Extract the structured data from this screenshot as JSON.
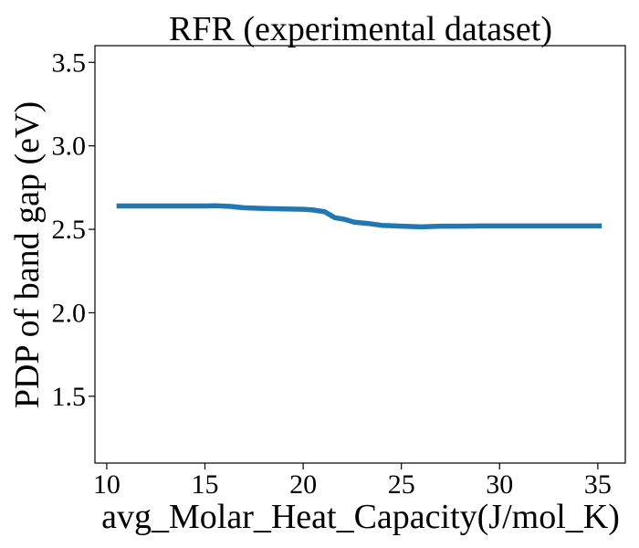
{
  "chart_data": {
    "type": "line",
    "title": "RFR (experimental dataset)",
    "xlabel": "avg_Molar_Heat_Capacity(J/mol_K)",
    "ylabel": "PDP of band gap (eV)",
    "xlim": [
      9.4,
      36.4
    ],
    "ylim": [
      1.1,
      3.6
    ],
    "xticks": [
      10,
      15,
      20,
      25,
      30,
      35
    ],
    "xtick_labels": [
      "10",
      "15",
      "20",
      "25",
      "30",
      "35"
    ],
    "yticks": [
      1.5,
      2.0,
      2.5,
      3.0,
      3.5
    ],
    "ytick_labels": [
      "1.5",
      "2.0",
      "2.5",
      "3.0",
      "3.5"
    ],
    "grid": false,
    "series": [
      {
        "color": "#1f77b4",
        "x": [
          10.5,
          12.0,
          13.5,
          15.0,
          15.6,
          16.3,
          17.0,
          18.0,
          19.0,
          20.0,
          20.5,
          21.1,
          21.6,
          22.1,
          22.6,
          23.3,
          24.0,
          25.0,
          26.0,
          27.0,
          28.0,
          29.0,
          30.0,
          32.0,
          34.0,
          35.2
        ],
        "y": [
          2.64,
          2.64,
          2.64,
          2.64,
          2.641,
          2.637,
          2.629,
          2.625,
          2.622,
          2.62,
          2.616,
          2.605,
          2.57,
          2.56,
          2.543,
          2.535,
          2.524,
          2.519,
          2.515,
          2.519,
          2.519,
          2.52,
          2.52,
          2.52,
          2.52,
          2.52
        ]
      }
    ]
  }
}
